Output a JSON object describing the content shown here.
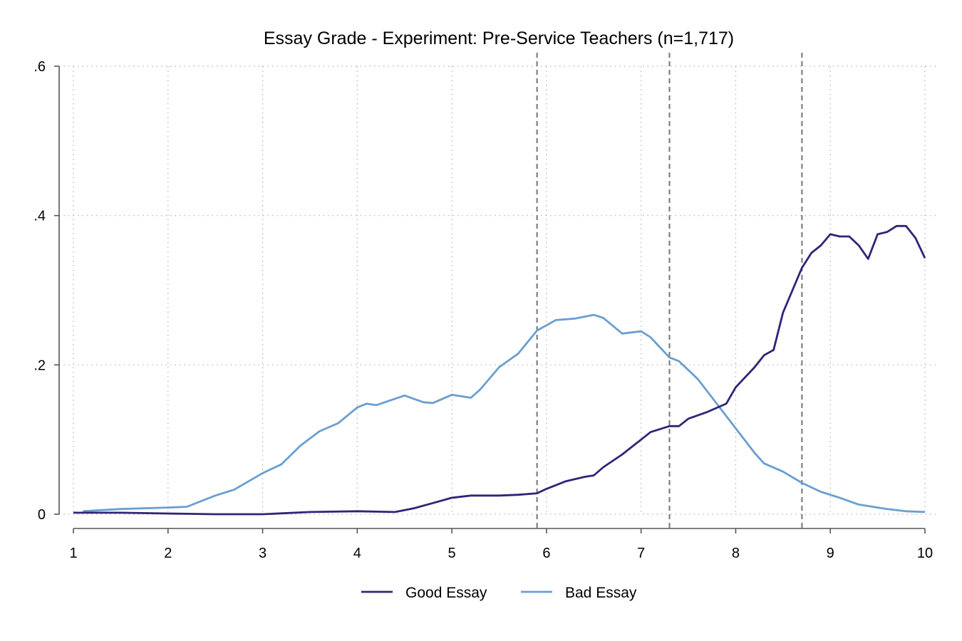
{
  "chart_data": {
    "type": "line",
    "title": "Essay Grade - Experiment: Pre-Service Teachers (n=1,717)",
    "xlabel": "",
    "ylabel": "",
    "xlim": [
      1,
      10
    ],
    "ylim": [
      0,
      0.6
    ],
    "x_ticks": [
      {
        "value": 1,
        "label": "1"
      },
      {
        "value": 2,
        "label": "2"
      },
      {
        "value": 3,
        "label": "3"
      },
      {
        "value": 4,
        "label": "4"
      },
      {
        "value": 5,
        "label": "5"
      },
      {
        "value": 6,
        "label": "6"
      },
      {
        "value": 7,
        "label": "7"
      },
      {
        "value": 8,
        "label": "8"
      },
      {
        "value": 9,
        "label": "9"
      },
      {
        "value": 10,
        "label": "10"
      }
    ],
    "y_ticks": [
      {
        "value": 0,
        "label": "0"
      },
      {
        "value": 0.2,
        "label": ".2"
      },
      {
        "value": 0.4,
        "label": ".4"
      },
      {
        "value": 0.6,
        "label": ".6"
      }
    ],
    "grid": true,
    "reference_lines_x": [
      5.9,
      7.3,
      8.7
    ],
    "legend_position": "bottom",
    "series": [
      {
        "name": "Good Essay",
        "color": "#2e2577",
        "points": [
          [
            1.0,
            0.002
          ],
          [
            1.5,
            0.002
          ],
          [
            2.0,
            0.001
          ],
          [
            2.5,
            0.0
          ],
          [
            3.0,
            0.0
          ],
          [
            3.5,
            0.003
          ],
          [
            4.0,
            0.004
          ],
          [
            4.4,
            0.003
          ],
          [
            4.6,
            0.008
          ],
          [
            4.8,
            0.015
          ],
          [
            5.0,
            0.022
          ],
          [
            5.2,
            0.025
          ],
          [
            5.5,
            0.025
          ],
          [
            5.7,
            0.026
          ],
          [
            5.9,
            0.028
          ],
          [
            6.0,
            0.034
          ],
          [
            6.2,
            0.044
          ],
          [
            6.4,
            0.05
          ],
          [
            6.5,
            0.052
          ],
          [
            6.6,
            0.063
          ],
          [
            6.8,
            0.08
          ],
          [
            6.9,
            0.09
          ],
          [
            7.0,
            0.1
          ],
          [
            7.1,
            0.11
          ],
          [
            7.3,
            0.118
          ],
          [
            7.4,
            0.118
          ],
          [
            7.5,
            0.128
          ],
          [
            7.7,
            0.137
          ],
          [
            7.9,
            0.148
          ],
          [
            8.0,
            0.17
          ],
          [
            8.2,
            0.197
          ],
          [
            8.3,
            0.213
          ],
          [
            8.4,
            0.22
          ],
          [
            8.5,
            0.27
          ],
          [
            8.6,
            0.3
          ],
          [
            8.7,
            0.33
          ],
          [
            8.8,
            0.35
          ],
          [
            8.9,
            0.36
          ],
          [
            9.0,
            0.375
          ],
          [
            9.1,
            0.372
          ],
          [
            9.2,
            0.372
          ],
          [
            9.3,
            0.36
          ],
          [
            9.4,
            0.342
          ],
          [
            9.5,
            0.375
          ],
          [
            9.6,
            0.378
          ],
          [
            9.7,
            0.386
          ],
          [
            9.8,
            0.386
          ],
          [
            9.9,
            0.37
          ],
          [
            10.0,
            0.343
          ]
        ]
      },
      {
        "name": "Bad Essay",
        "color": "#6a9fd0",
        "points": [
          [
            1.1,
            0.004
          ],
          [
            1.5,
            0.007
          ],
          [
            2.0,
            0.009
          ],
          [
            2.2,
            0.01
          ],
          [
            2.5,
            0.025
          ],
          [
            2.7,
            0.033
          ],
          [
            3.0,
            0.055
          ],
          [
            3.2,
            0.067
          ],
          [
            3.4,
            0.092
          ],
          [
            3.6,
            0.111
          ],
          [
            3.8,
            0.122
          ],
          [
            4.0,
            0.143
          ],
          [
            4.1,
            0.148
          ],
          [
            4.2,
            0.146
          ],
          [
            4.5,
            0.159
          ],
          [
            4.7,
            0.15
          ],
          [
            4.8,
            0.149
          ],
          [
            5.0,
            0.16
          ],
          [
            5.2,
            0.156
          ],
          [
            5.3,
            0.167
          ],
          [
            5.5,
            0.197
          ],
          [
            5.7,
            0.215
          ],
          [
            5.9,
            0.246
          ],
          [
            6.1,
            0.26
          ],
          [
            6.3,
            0.262
          ],
          [
            6.5,
            0.267
          ],
          [
            6.6,
            0.263
          ],
          [
            6.8,
            0.242
          ],
          [
            7.0,
            0.245
          ],
          [
            7.1,
            0.237
          ],
          [
            7.3,
            0.21
          ],
          [
            7.4,
            0.205
          ],
          [
            7.6,
            0.181
          ],
          [
            7.8,
            0.148
          ],
          [
            8.0,
            0.115
          ],
          [
            8.2,
            0.082
          ],
          [
            8.3,
            0.068
          ],
          [
            8.5,
            0.057
          ],
          [
            8.7,
            0.042
          ],
          [
            8.9,
            0.03
          ],
          [
            9.1,
            0.022
          ],
          [
            9.3,
            0.013
          ],
          [
            9.6,
            0.007
          ],
          [
            9.8,
            0.004
          ],
          [
            10.0,
            0.003
          ]
        ]
      }
    ]
  }
}
